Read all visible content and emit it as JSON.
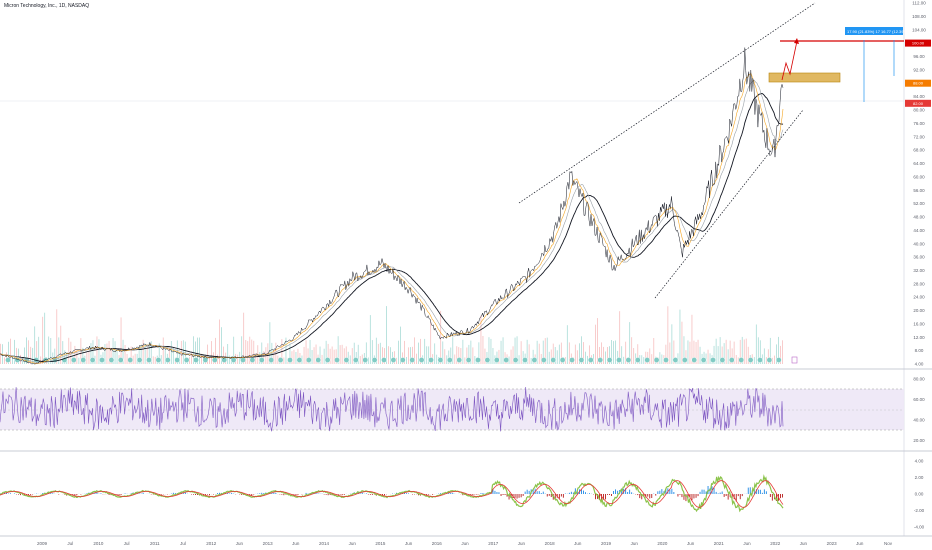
{
  "title": "Micron Technology, Inc., 1D, NASDAQ",
  "colors": {
    "price": "#131722",
    "ema_fast": "#f5a623",
    "ema_mid": "#9aa1a8",
    "sma_slow": "#131722",
    "rsi": "#7e57c2",
    "rsi_band": "#ede7f6",
    "vol_up": "#b2dfdb",
    "vol_down": "#f7c6c6",
    "macd_pos": "#1e88e5",
    "macd_neg": "#b71c1c",
    "macd_line": "#8bc34a",
    "signal_line": "#e53935",
    "target_line": "#d50000",
    "zone_fill": "#e0b862",
    "measure": "#2196f3"
  },
  "chart_data": [
    {
      "type": "line",
      "name": "price",
      "x": [
        "2008-06",
        "2009-01",
        "2009-07",
        "2010-01",
        "2010-07",
        "2011-01",
        "2011-07",
        "2012-01",
        "2012-07",
        "2013-01",
        "2013-07",
        "2014-01",
        "2014-07",
        "2015-01",
        "2015-07",
        "2016-01",
        "2016-07",
        "2017-01",
        "2017-07",
        "2018-01",
        "2018-04",
        "2018-07",
        "2019-01",
        "2019-07",
        "2020-01",
        "2020-03",
        "2020-07",
        "2021-01",
        "2021-04",
        "2021-07",
        "2021-10",
        "2021-12"
      ],
      "values": [
        7,
        4,
        7,
        9,
        8,
        10,
        7,
        6,
        6,
        7,
        12,
        21,
        30,
        34,
        26,
        12,
        14,
        23,
        30,
        44,
        60,
        51,
        33,
        43,
        52,
        37,
        49,
        75,
        94,
        78,
        66,
        90
      ],
      "y_ticks": [
        "4.00",
        "8.00",
        "12.00",
        "16.00",
        "20.00",
        "24.00",
        "28.00",
        "32.00",
        "36.00",
        "40.00",
        "44.00",
        "48.00",
        "52.00",
        "56.00",
        "60.00",
        "64.00",
        "68.00",
        "72.00",
        "76.00",
        "80.00",
        "84.00",
        "88.00",
        "92.00",
        "96.00",
        "100.00",
        "104.00",
        "108.00",
        "112.00"
      ],
      "x_ticks": [
        "2009",
        "Jul",
        "2010",
        "Jul",
        "2011",
        "Jul",
        "2012",
        "Jun",
        "2013",
        "Jun",
        "2014",
        "Jun",
        "2015",
        "Jun",
        "2016",
        "Jun",
        "2017",
        "Jun",
        "2018",
        "Jun",
        "2019",
        "Jun",
        "2020",
        "Jun",
        "2021",
        "Jun",
        "2022",
        "Jun",
        "2023",
        "Jun",
        "Nov"
      ],
      "price_tags": [
        "100.00",
        "88.00",
        "82.00"
      ],
      "target": 100,
      "zone": [
        86,
        89
      ],
      "measure_label": "17.90 (21.83%) 17   16.77 (12.39%) 1077",
      "grid": false
    },
    {
      "type": "line",
      "name": "RSI",
      "y_ticks": [
        "80.00",
        "60.00",
        "40.00",
        "20.00"
      ],
      "bands": [
        70,
        30
      ]
    },
    {
      "type": "bar",
      "name": "MACD",
      "y_ticks": [
        "4.00",
        "2.00",
        "0.00",
        "-2.00",
        "-4.00"
      ]
    }
  ]
}
